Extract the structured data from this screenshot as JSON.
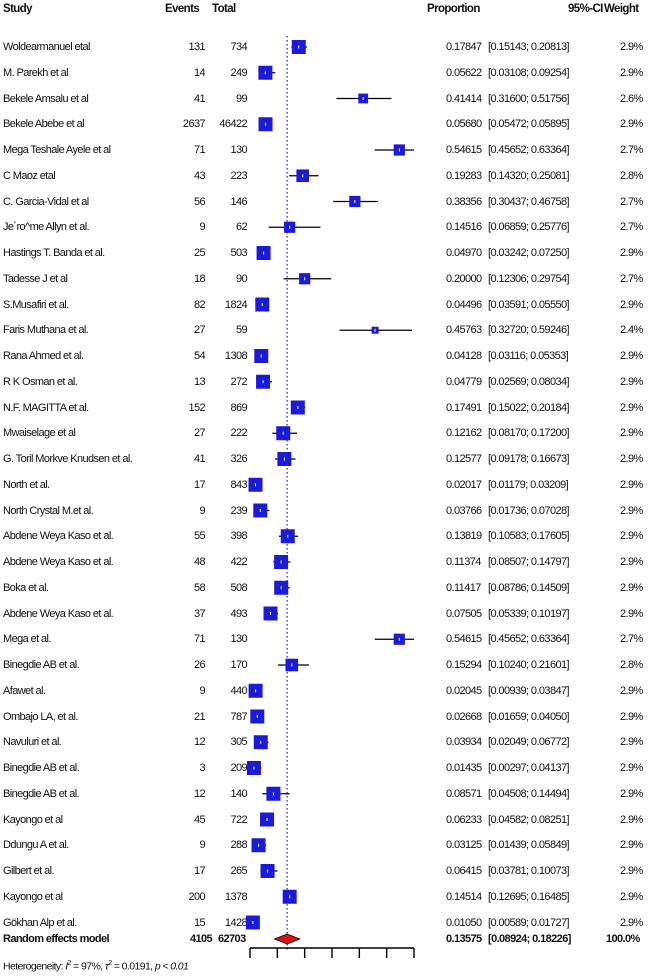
{
  "headers": {
    "study": "Study",
    "events": "Events",
    "total": "Total",
    "proportion": "Proportion",
    "ci": "95%-CI",
    "weight": "Weight"
  },
  "chart_data": {
    "type": "forest",
    "x_null_line": 0.13575,
    "xlim": [
      0,
      0.6
    ],
    "ticks": [
      0,
      0.1,
      0.2,
      0.3,
      0.4,
      0.5,
      0.6
    ],
    "studies": [
      {
        "study": "Woldearmanuel etal",
        "events": "131",
        "total": "734",
        "prop": 0.17847,
        "lo": 0.15143,
        "hi": 0.20813,
        "prop_text": "0.17847",
        "ci_text": "[0.15143; 0.20813]",
        "weight": "2.9%"
      },
      {
        "study": "M. Parekh et al",
        "events": "14",
        "total": "249",
        "prop": 0.05622,
        "lo": 0.03108,
        "hi": 0.09254,
        "prop_text": "0.05622",
        "ci_text": "[0.03108; 0.09254]",
        "weight": "2.9%"
      },
      {
        "study": "Bekele Amsalu et al",
        "events": "41",
        "total": "99",
        "prop": 0.41414,
        "lo": 0.316,
        "hi": 0.51756,
        "prop_text": "0.41414",
        "ci_text": "[0.31600; 0.51756]",
        "weight": "2.6%"
      },
      {
        "study": "Bekele Abebe et al",
        "events": "2637",
        "total": "46422",
        "prop": 0.0568,
        "lo": 0.05472,
        "hi": 0.05895,
        "prop_text": "0.05680",
        "ci_text": "[0.05472; 0.05895]",
        "weight": "2.9%"
      },
      {
        "study": "Mega Teshale Ayele et al",
        "events": "71",
        "total": "130",
        "prop": 0.54615,
        "lo": 0.45652,
        "hi": 0.63364,
        "prop_text": "0.54615",
        "ci_text": "[0.45652; 0.63364]",
        "weight": "2.7%"
      },
      {
        "study": "C Maoz etal",
        "events": "43",
        "total": "223",
        "prop": 0.19283,
        "lo": 0.1432,
        "hi": 0.25081,
        "prop_text": "0.19283",
        "ci_text": "[0.14320; 0.25081]",
        "weight": "2.8%"
      },
      {
        "study": "C. Garcia-Vidal et al",
        "events": "56",
        "total": "146",
        "prop": 0.38356,
        "lo": 0.30437,
        "hi": 0.46758,
        "prop_text": "0.38356",
        "ci_text": "[0.30437; 0.46758]",
        "weight": "2.7%"
      },
      {
        "study": "Je´ro^me Allyn et al.",
        "events": "9",
        "total": "62",
        "prop": 0.14516,
        "lo": 0.06859,
        "hi": 0.25776,
        "prop_text": "0.14516",
        "ci_text": "[0.06859; 0.25776]",
        "weight": "2.7%"
      },
      {
        "study": "Hastings T. Banda et al.",
        "events": "25",
        "total": "503",
        "prop": 0.0497,
        "lo": 0.03242,
        "hi": 0.0725,
        "prop_text": "0.04970",
        "ci_text": "[0.03242; 0.07250]",
        "weight": "2.9%"
      },
      {
        "study": "Tadesse J et al",
        "events": "18",
        "total": "90",
        "prop": 0.2,
        "lo": 0.12306,
        "hi": 0.29754,
        "prop_text": "0.20000",
        "ci_text": "[0.12306; 0.29754]",
        "weight": "2.7%"
      },
      {
        "study": "S.Musafiri et al.",
        "events": "82",
        "total": "1824",
        "prop": 0.04496,
        "lo": 0.03591,
        "hi": 0.0555,
        "prop_text": "0.04496",
        "ci_text": "[0.03591; 0.05550]",
        "weight": "2.9%"
      },
      {
        "study": "Faris Muthana et al.",
        "events": "27",
        "total": "59",
        "prop": 0.45763,
        "lo": 0.3272,
        "hi": 0.59246,
        "prop_text": "0.45763",
        "ci_text": "[0.32720; 0.59246]",
        "weight": "2.4%"
      },
      {
        "study": "Rana Ahmed et al.",
        "events": "54",
        "total": "1308",
        "prop": 0.04128,
        "lo": 0.03116,
        "hi": 0.05353,
        "prop_text": "0.04128",
        "ci_text": "[0.03116; 0.05353]",
        "weight": "2.9%"
      },
      {
        "study": "R K Osman et al.",
        "events": "13",
        "total": "272",
        "prop": 0.04779,
        "lo": 0.02569,
        "hi": 0.08034,
        "prop_text": "0.04779",
        "ci_text": "[0.02569; 0.08034]",
        "weight": "2.9%"
      },
      {
        "study": "N.F. MAGITTA et al.",
        "events": "152",
        "total": "869",
        "prop": 0.17491,
        "lo": 0.15022,
        "hi": 0.20184,
        "prop_text": "0.17491",
        "ci_text": "[0.15022; 0.20184]",
        "weight": "2.9%"
      },
      {
        "study": "Mwaiselage et al",
        "events": "27",
        "total": "222",
        "prop": 0.12162,
        "lo": 0.0817,
        "hi": 0.172,
        "prop_text": "0.12162",
        "ci_text": "[0.08170; 0.17200]",
        "weight": "2.9%"
      },
      {
        "study": "G. Toril Morkve Knudsen et al.",
        "events": "41",
        "total": "326",
        "prop": 0.12577,
        "lo": 0.09178,
        "hi": 0.16673,
        "prop_text": "0.12577",
        "ci_text": "[0.09178; 0.16673]",
        "weight": "2.9%"
      },
      {
        "study": "North et al.",
        "events": "17",
        "total": "843",
        "prop": 0.02017,
        "lo": 0.01179,
        "hi": 0.03209,
        "prop_text": "0.02017",
        "ci_text": "[0.01179; 0.03209]",
        "weight": "2.9%"
      },
      {
        "study": "North Crystal M.et al.",
        "events": "9",
        "total": "239",
        "prop": 0.03766,
        "lo": 0.01736,
        "hi": 0.07028,
        "prop_text": "0.03766",
        "ci_text": "[0.01736; 0.07028]",
        "weight": "2.9%"
      },
      {
        "study": "Abdene Weya Kaso et al.",
        "events": "55",
        "total": "398",
        "prop": 0.13819,
        "lo": 0.10583,
        "hi": 0.17605,
        "prop_text": "0.13819",
        "ci_text": "[0.10583; 0.17605]",
        "weight": "2.9%"
      },
      {
        "study": "Abdene Weya Kaso et al.",
        "events": "48",
        "total": "422",
        "prop": 0.11374,
        "lo": 0.08507,
        "hi": 0.14797,
        "prop_text": "0.11374",
        "ci_text": "[0.08507; 0.14797]",
        "weight": "2.9%"
      },
      {
        "study": "Boka et al.",
        "events": "58",
        "total": "508",
        "prop": 0.11417,
        "lo": 0.08786,
        "hi": 0.14509,
        "prop_text": "0.11417",
        "ci_text": "[0.08786; 0.14509]",
        "weight": "2.9%"
      },
      {
        "study": "Abdene Weya Kaso et al.",
        "events": "37",
        "total": "493",
        "prop": 0.07505,
        "lo": 0.05339,
        "hi": 0.10197,
        "prop_text": "0.07505",
        "ci_text": "[0.05339; 0.10197]",
        "weight": "2.9%"
      },
      {
        "study": "Mega et al.",
        "events": "71",
        "total": "130",
        "prop": 0.54615,
        "lo": 0.45652,
        "hi": 0.63364,
        "prop_text": "0.54615",
        "ci_text": "[0.45652; 0.63364]",
        "weight": "2.7%"
      },
      {
        "study": "Binegdie AB et al.",
        "events": "26",
        "total": "170",
        "prop": 0.15294,
        "lo": 0.1024,
        "hi": 0.21601,
        "prop_text": "0.15294",
        "ci_text": "[0.10240; 0.21601]",
        "weight": "2.8%"
      },
      {
        "study": "Afawet al.",
        "events": "9",
        "total": "440",
        "prop": 0.02045,
        "lo": 0.00939,
        "hi": 0.03847,
        "prop_text": "0.02045",
        "ci_text": "[0.00939; 0.03847]",
        "weight": "2.9%"
      },
      {
        "study": "Ombajo LA, et al.",
        "events": "21",
        "total": "787",
        "prop": 0.02668,
        "lo": 0.01659,
        "hi": 0.0405,
        "prop_text": "0.02668",
        "ci_text": "[0.01659; 0.04050]",
        "weight": "2.9%"
      },
      {
        "study": "Navuluri et al.",
        "events": "12",
        "total": "305",
        "prop": 0.03934,
        "lo": 0.02049,
        "hi": 0.06772,
        "prop_text": "0.03934",
        "ci_text": "[0.02049; 0.06772]",
        "weight": "2.9%"
      },
      {
        "study": "Binegdie AB et al.",
        "events": "3",
        "total": "209",
        "prop": 0.01435,
        "lo": 0.00297,
        "hi": 0.04137,
        "prop_text": "0.01435",
        "ci_text": "[0.00297; 0.04137]",
        "weight": "2.9%"
      },
      {
        "study": "Binegdie AB et al.",
        "events": "12",
        "total": "140",
        "prop": 0.08571,
        "lo": 0.04508,
        "hi": 0.14494,
        "prop_text": "0.08571",
        "ci_text": "[0.04508; 0.14494]",
        "weight": "2.9%"
      },
      {
        "study": "Kayongo et al",
        "events": "45",
        "total": "722",
        "prop": 0.06233,
        "lo": 0.04582,
        "hi": 0.08251,
        "prop_text": "0.06233",
        "ci_text": "[0.04582; 0.08251]",
        "weight": "2.9%"
      },
      {
        "study": "Ddungu A et al.",
        "events": "9",
        "total": "288",
        "prop": 0.03125,
        "lo": 0.01439,
        "hi": 0.05849,
        "prop_text": "0.03125",
        "ci_text": "[0.01439; 0.05849]",
        "weight": "2.9%"
      },
      {
        "study": "Gilbert et al.",
        "events": "17",
        "total": "265",
        "prop": 0.06415,
        "lo": 0.03781,
        "hi": 0.10073,
        "prop_text": "0.06415",
        "ci_text": "[0.03781; 0.10073]",
        "weight": "2.9%"
      },
      {
        "study": "Kayongo et al",
        "events": "200",
        "total": "1378",
        "prop": 0.14514,
        "lo": 0.12695,
        "hi": 0.16485,
        "prop_text": "0.14514",
        "ci_text": "[0.12695; 0.16485]",
        "weight": "2.9%"
      },
      {
        "study": "Gökhan Alp et al.",
        "events": "15",
        "total": "1428",
        "prop": 0.0105,
        "lo": 0.00589,
        "hi": 0.01727,
        "prop_text": "0.01050",
        "ci_text": "[0.00589; 0.01727]",
        "weight": "2.9%"
      }
    ],
    "summary": {
      "label": "Random effects model",
      "events": "4105",
      "total": "62703",
      "prop": 0.13575,
      "lo": 0.08924,
      "hi": 0.18226,
      "prop_text": "0.13575",
      "ci_text": "[0.08924; 0.18226]",
      "weight": "100.0%"
    },
    "heterogeneity": {
      "prefix": "Heterogeneity: ",
      "i2_symbol": "I",
      "i2_value": " = 97%, ",
      "tau2_symbol": "τ",
      "tau2_value": " = 0.0191, ",
      "p_text": "p < 0.01"
    }
  }
}
